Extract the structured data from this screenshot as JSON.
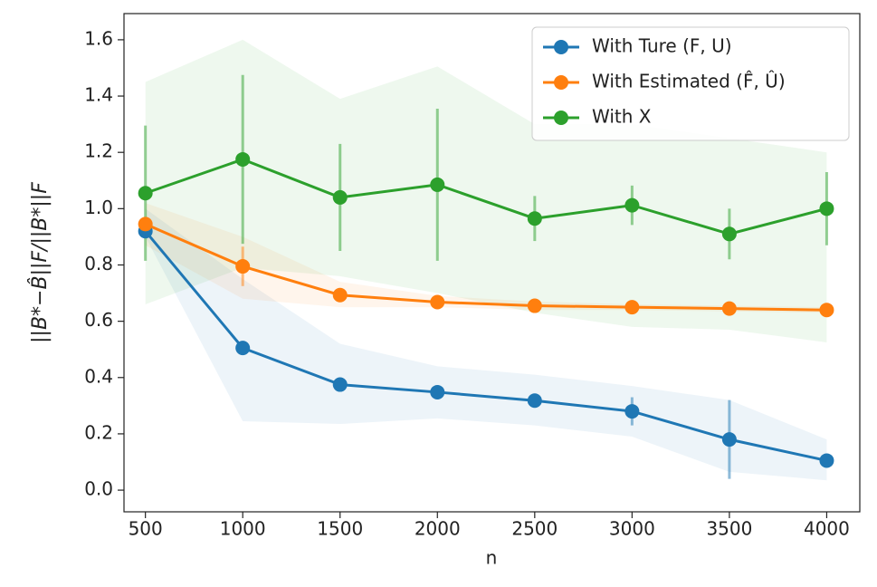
{
  "chart_data": {
    "type": "line",
    "xlabel": "n",
    "ylabel": "||B*−B̂||F/||B*||F",
    "x": [
      500,
      1000,
      1500,
      2000,
      2500,
      3000,
      3500,
      4000
    ],
    "xlim": [
      390,
      4170
    ],
    "xticks": [
      500,
      1000,
      1500,
      2000,
      2500,
      3000,
      3500,
      4000
    ],
    "ylim": [
      -0.077,
      1.693
    ],
    "yticks": [
      {
        "value": 0,
        "label": "0.0"
      },
      0.2,
      0.4,
      0.6,
      0.8,
      {
        "value": 1,
        "label": "1.0"
      },
      1.2,
      1.4,
      1.6
    ],
    "legend": "upper right",
    "series": [
      {
        "name": "With Ture (F, U)",
        "color": "#1f77b4",
        "values": [
          0.92,
          0.505,
          0.375,
          0.348,
          0.318,
          0.28,
          0.18,
          0.105
        ],
        "errors": [
          0,
          0,
          0,
          0,
          0,
          0.05,
          0.14,
          0
        ],
        "band_lower": [
          0.9,
          0.245,
          0.235,
          0.255,
          0.23,
          0.19,
          0.065,
          0.035
        ],
        "band_upper": [
          1.0,
          0.75,
          0.52,
          0.44,
          0.41,
          0.37,
          0.32,
          0.18
        ]
      },
      {
        "name": "With Estimated (F̂, Û)",
        "color": "#ff7f0e",
        "values": [
          0.945,
          0.795,
          0.693,
          0.668,
          0.655,
          0.65,
          0.645,
          0.64
        ],
        "errors": [
          0,
          0.07,
          0,
          0,
          0,
          0,
          0,
          0
        ],
        "band_lower": [
          0.87,
          0.68,
          0.65,
          0.65,
          0.64,
          0.64,
          0.635,
          0.63
        ],
        "band_upper": [
          1.02,
          0.9,
          0.74,
          0.69,
          0.67,
          0.66,
          0.655,
          0.65
        ]
      },
      {
        "name": "With X",
        "color": "#2ca02c",
        "values": [
          1.055,
          1.175,
          1.04,
          1.085,
          0.965,
          1.012,
          0.91,
          1.0
        ],
        "errors": [
          0.24,
          0.3,
          0.19,
          0.27,
          0.08,
          0.07,
          0.09,
          0.13
        ],
        "band_lower": [
          0.66,
          0.79,
          0.76,
          0.7,
          0.63,
          0.58,
          0.57,
          0.525
        ],
        "band_upper": [
          1.45,
          1.6,
          1.39,
          1.505,
          1.3,
          1.3,
          1.25,
          1.2
        ]
      }
    ]
  }
}
